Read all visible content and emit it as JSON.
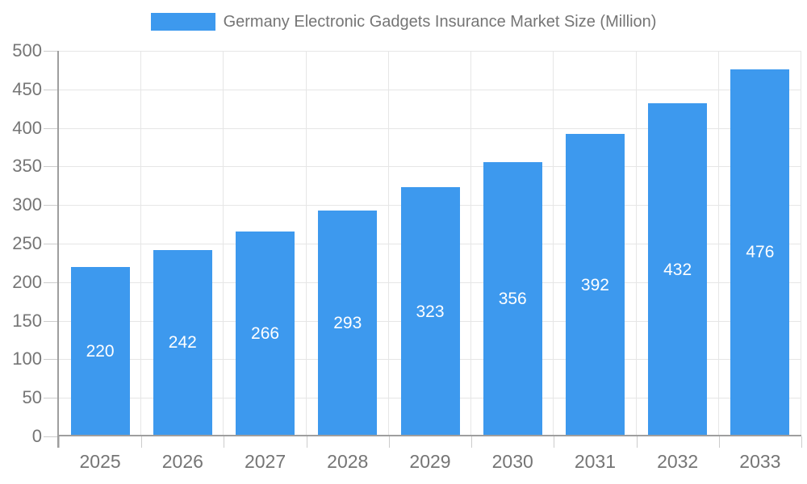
{
  "chart_data": {
    "type": "bar",
    "legend_label": "Germany Electronic Gadgets Insurance Market Size (Million)",
    "legend_position": "top-center",
    "categories": [
      "2025",
      "2026",
      "2027",
      "2028",
      "2029",
      "2030",
      "2031",
      "2032",
      "2033"
    ],
    "values": [
      220,
      242,
      266,
      293,
      323,
      356,
      392,
      432,
      476
    ],
    "bar_value_labels": [
      "220",
      "242",
      "266",
      "293",
      "323",
      "356",
      "392",
      "432",
      "476"
    ],
    "ylim": [
      0,
      500
    ],
    "ytick_step": 50,
    "ytick_labels": [
      "0",
      "50",
      "100",
      "150",
      "200",
      "250",
      "300",
      "350",
      "400",
      "450",
      "500"
    ],
    "grid": "both",
    "value_labels_position": "inside-center",
    "colors": {
      "bar": "#3d99ee",
      "bar_label": "#ffffff",
      "grid": "#e6e6e6",
      "axis": "#9e9e9e",
      "tick": "#cccccc",
      "text": "#757575",
      "background": "#ffffff"
    }
  }
}
